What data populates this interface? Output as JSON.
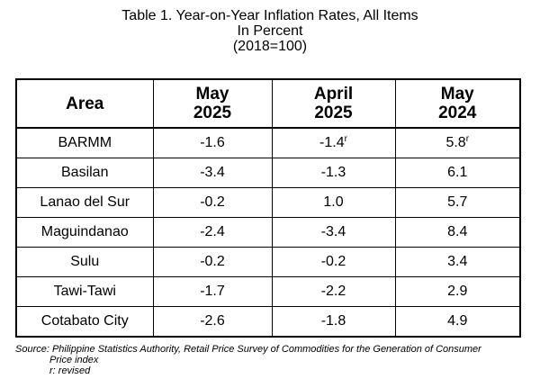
{
  "title": {
    "line1": "Table 1. Year-on-Year Inflation Rates, All Items",
    "line2": "In Percent",
    "line3": "(2018=100)"
  },
  "table": {
    "headers": {
      "area": "Area",
      "col1": {
        "line1": "May",
        "line2": "2025"
      },
      "col2": {
        "line1": "April",
        "line2": "2025"
      },
      "col3": {
        "line1": "May",
        "line2": "2024"
      }
    },
    "rows": [
      {
        "area": "BARMM",
        "c1": "-1.6",
        "c2": "-1.4",
        "c2_mark": "r",
        "c3": "5.8",
        "c3_mark": "r"
      },
      {
        "area": "Basilan",
        "c1": "-3.4",
        "c2": "-1.3",
        "c3": "6.1"
      },
      {
        "area": "Lanao del Sur",
        "c1": "-0.2",
        "c2": "1.0",
        "c3": "5.7"
      },
      {
        "area": "Maguindanao",
        "c1": "-2.4",
        "c2": "-3.4",
        "c3": "8.4"
      },
      {
        "area": "Sulu",
        "c1": "-0.2",
        "c2": "-0.2",
        "c3": "3.4"
      },
      {
        "area": "Tawi-Tawi",
        "c1": "-1.7",
        "c2": "-2.2",
        "c3": "2.9"
      },
      {
        "area": "Cotabato City",
        "c1": "-2.6",
        "c2": "-1.8",
        "c3": "4.9"
      }
    ]
  },
  "notes": {
    "source_line1": "Source: Philippine Statistics Authority, Retail Price Survey of Commodities for the Generation of Consumer",
    "source_line2": "Price index",
    "revised": "r: revised"
  }
}
